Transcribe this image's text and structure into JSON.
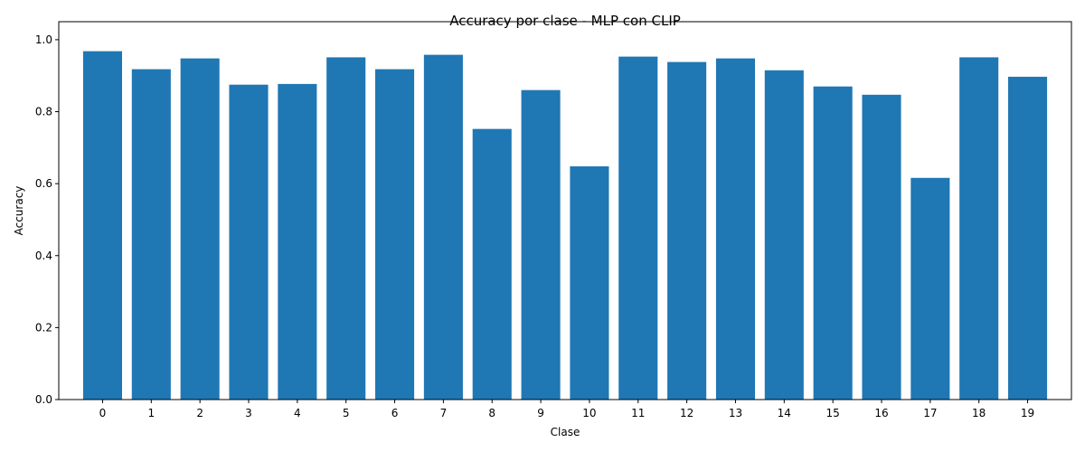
{
  "chart_data": {
    "type": "bar",
    "title": "Accuracy por clase - MLP con CLIP",
    "xlabel": "Clase",
    "ylabel": "Accuracy",
    "categories": [
      "0",
      "1",
      "2",
      "3",
      "4",
      "5",
      "6",
      "7",
      "8",
      "9",
      "10",
      "11",
      "12",
      "13",
      "14",
      "15",
      "16",
      "17",
      "18",
      "19"
    ],
    "values": [
      0.968,
      0.918,
      0.948,
      0.875,
      0.877,
      0.951,
      0.918,
      0.958,
      0.752,
      0.86,
      0.648,
      0.953,
      0.938,
      0.948,
      0.915,
      0.87,
      0.847,
      0.616,
      0.951,
      0.897
    ],
    "ylim": [
      0,
      1.0
    ],
    "yticks": [
      "0.0",
      "0.2",
      "0.4",
      "0.6",
      "0.8",
      "1.0"
    ],
    "grid": false,
    "bar_color": "#1f77b4"
  }
}
